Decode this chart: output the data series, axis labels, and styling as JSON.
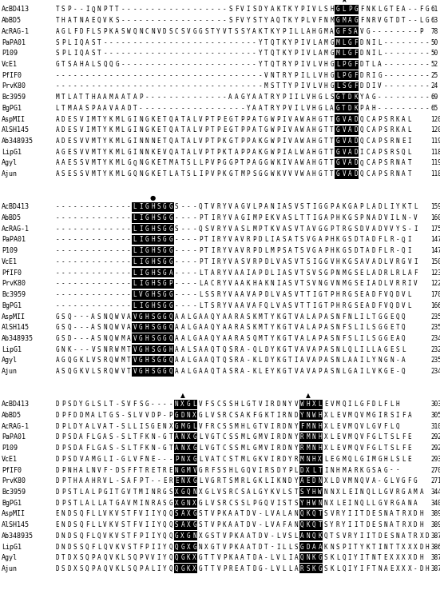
{
  "block1": [
    [
      "AcBD413",
      "TSP--IQNPTT------------------SFVISDYAKTKYPIVLSHGLPGFNKLGTEA--FG",
      61
    ],
    [
      "AbBD5",
      "THATNAEQVKS------------------SFVYSTYAQTKYPLVFNMGMAGFNRVGTDT--LG",
      63
    ],
    [
      "AcRAG-1",
      "AGLFDFLSPKASWQNCNVDSCSVGGSTYVTSSYAKTKYPILLAHGMAGFSAVG--------P",
      78
    ],
    [
      "PaPA01",
      "SPLIQAST--------------------------YTQTKYPIVLAMGMLGFDNIL--------G",
      50
    ],
    [
      "P109",
      "SPLIQAST--------------------------YTQTKYPIVLAMGMLGFDNIL--------G",
      50
    ],
    [
      "VcE1",
      "GTSAHALSQQG-----------------------YTQTRYPIVLVHGLPGFDTLA--------G",
      52
    ],
    [
      "PfIF0",
      "-----------------------------------VNTRYPILLVHGLPGFDRIG--------S",
      25
    ],
    [
      "PrvK80",
      "-----------------------------------MSTTY PIVLVHGLSGFDDIV--------G",
      24
    ],
    [
      "Bc3959",
      "MTLATTHAAMAATAP--------------AAGYAATRYPIILVHGLSGTDKYAG---------V",
      69
    ],
    [
      "BgPG1",
      "LTMAASPAAVAADT------------------YAATRYPVILVHGLAGTDKPAH---------V",
      65
    ],
    [
      "AspMII",
      "ADESVIMTYKMLGINGKETQATALVPTPEGTPPATGWPIVAWAHGTTGVADQCAPSRKAL",
      120
    ],
    [
      "AlSH145",
      "ADESVIMTYKMLGINGKETQATALVPTPEGTPPATGWPIVAWAHGTTGVADQCAPSRKAL",
      120
    ],
    [
      "Ab348935",
      "ADESVVMTYKMLGINNNETQATALVPTPKGTPPAKGWPIVAWAHGTTGVADQCAPSRNEI",
      119
    ],
    [
      "LipG1",
      "AGESVVMTYKMLGINNKEVQATALVPTPKTAPPAKGWPIALWAHGTTGVADICAPSRSQL",
      118
    ],
    [
      "Agyl",
      "AAESSVMTYKMLGQNGKETMATSLLPVPGGPTPAGGWKIVAWAHGTTGVADQCAPSRNAT",
      119
    ],
    [
      "Ajun",
      "ASESSVMTYKMLGQNGKETLATSLIPVPKGTMPSGGWKVVVWAHGTTGVADQCAPSRNAT",
      118
    ]
  ],
  "block1_highlight": [
    47,
    48,
    49,
    50
  ],
  "block1_star_col": 48,
  "block2": [
    [
      "AcBD413",
      "-------------LIGHSGGS---QTVRYVAGVLPANIASVST IGGPAKGAPLADLIYKTL",
      159
    ],
    [
      "AbBD5",
      "-------------LIGHSGG----PTIRYVAGIMP EKVASLTT IGAPHKGSPNADVILN-V",
      160
    ],
    [
      "AcRAG-1",
      "-------------LIGHSGGS---QSVRYVASLMPTKVASVTAVGGPTRGSDVADVVYS-I",
      175
    ],
    [
      "PaPA01",
      "-------------LIGHSGG----PTIRYVAVRPDLIASATSVGAPHKGSDTADFLR-QI",
      147
    ],
    [
      "P109",
      "-------------LIGHSGG----PTIRYVAVRPDLMPSATSVGAPHKGSDTADFLR-QI",
      147
    ],
    [
      "VcE1",
      "-------------LIGHSGG----PTIRYVASVRPDLVASVTSIGGVHKGSAVADLVRGVI",
      150
    ],
    [
      "PfIF0",
      "-------------LIGHSGA----LTARYVAAIAPDLIASVTSVSGPNMGSELADRLRLAF",
      123
    ],
    [
      "PrvK80",
      "-------------LIGHSGP----LACRYVAAKHAKNIASV TSVNGVNMGSEIADLVRRIV",
      122
    ],
    [
      "Bc3959",
      "-------------LVGHSGG----LSSRYVAAVAPDLVASVTTIGTPHRGSEADFVQDVL",
      170
    ],
    [
      "BgPG1",
      "-------------LIGHSGG----LTSRYVAAVAFQLVASVTTIGTPHRGSEADFVQDVL",
      166
    ],
    [
      "AspMII",
      "GSQ---ASNQWVAVGHSGGQAALGAAQYAARASKMTYKGTVALAPASN FNLILTGGEQQ",
      235
    ],
    [
      "AlSH145",
      "GSQ---ASNQWVAVGHSGGQAALGAAQYAARASKMTYKGTVALAPASNFSLILSGGETQ",
      235
    ],
    [
      "Ab348935",
      "GSD---ASNQWMAVGHSGGQAALGAAQYAARASQMTYKGTVALAPASNFSLILSGGEAQ",
      234
    ],
    [
      "LipG1",
      "GNK---VSNRWMTVGHSGGHAALSAAQTQSRA-QLDYKGTVAVAPASNLQLILLAGESL",
      232
    ],
    [
      "Agyl",
      "AGQGKLVSRQWMTVGHSGGQAALGAAQTQSRA-KLDYKGTIAVAPASNLAAILYNGN-A",
      235
    ],
    [
      "Ajun",
      "ASQGKVLSRQWVTVGHSGGQAALGAAQTASRA-KLEYKGTVAVAPASNLGAILVKGE-Q",
      234
    ]
  ],
  "block2_highlight": [
    13,
    14,
    15,
    16,
    17,
    18,
    19
  ],
  "block2_dot_col": 16,
  "block3": [
    [
      "AcBD413",
      "DPSDYGLSLT-SVFSG----NXGLVFSCSSHLGTVIRDNYVWHXLEVMQILGFDLFLH",
      303
    ],
    [
      "AbBD5",
      "DPFDDMALTGS-SLVVDP-PGDNXGLVSRCSAKFGKTIRNDYNWHXLEVMQVMGIRSIFA",
      305
    ],
    [
      "AcRAG-1",
      "DPLDYALVAT-SLLISGENXGMGLVFRCSSMHLGTVIRDNYFMNHXLEVMQVLGVFLQ",
      310
    ],
    [
      "PaPA01",
      "DPSDAFLGAS-SLTFKN-GTANXGLVGTCSSMLGMVIRDNYRMNHXLEVMQVFGLTSLFE",
      292
    ],
    [
      "P109",
      "DPSDAFLGAS-SLTFKN-GTANXGLVGTCSSMLGMVIRDNYRMNHXLEVMQVFGLTSLFE",
      292
    ],
    [
      "VcE1",
      "DPSDVAMGLI-GLVFNE---PNXGLVATCSTMLGKVIRDYRMNHXLEGMQLGIMGHLSLE",
      293
    ],
    [
      "PfIF0",
      "DPNHALNVF-DSFFTRETRENGMVGRFSSHLGQVIRSDYPLDXLTINHMARKGSAG--",
      270
    ],
    [
      "PrvK80",
      "DPTHAAHRVL-SAFPT--ERENXGLVGRTSMRLGKLIKNDYAEDNXLDVMNQVA-GLVGFG",
      271
    ],
    [
      "Bc3959",
      "DPSTLALPGITGVTMINRGSXGQNXGLVSRCSALGYKVLSTSYHWNNXLEINQLLGVRGAMA",
      344
    ],
    [
      "BgPG1",
      "DPSTLALLATGAVMINRASGXGNXGLVSRCSSLPGQVISTSYHWNNXLEINQLLGVRGANA",
      340
    ],
    [
      "AspMII",
      "ENDSQFLLVKVSTFVIIYQQSAXGSTVPKAATDV-LVALANQKQTSVRYI ITDESNATRXDH",
      389
    ],
    [
      "AlSH145",
      "ENDSQFLLVKVSTFVIIYQQSAXGSTVPKAATDV-LVAFANQKQTSYRYI ITDESNATRXDH",
      389
    ],
    [
      "Ab348935",
      "DNDSQFLQVKVSTFPIIYQQGXGNXGSTVPKAATDV-LVSLANQKQTSVRYI ITDESNATRXDH",
      387
    ],
    [
      "LipG1",
      "DNDSSQFLQVKVSTFPIIYQQGXGNXGTVPKAATDT-ILLSGDAAKNSPITYKTINTTXXXDH",
      386
    ],
    [
      "Agyl",
      "DTDXSQPAQVKLSQPVVIYQQGKXGTTVPKAATDA-LVLIAQNKGSKLQIYITNTEXXXXDH",
      387
    ],
    [
      "Ajun",
      "DSDXSQPAQVKLSQPALIYQQGKXGTTVPREATDG-LVLLARSKGSKLQIYIFTNAEXXX-DH",
      387
    ]
  ],
  "block3_highlight1": [
    20,
    21,
    22,
    23
  ],
  "block3_highlight2": [
    41,
    42,
    43,
    44
  ],
  "block3_tri1_col": 21,
  "block3_tri2_col": 42,
  "fig_width": 5.51,
  "fig_height": 7.68,
  "dpi": 100,
  "label_fontsize": 6.0,
  "seq_fontsize": 5.5,
  "num_fontsize": 5.5
}
